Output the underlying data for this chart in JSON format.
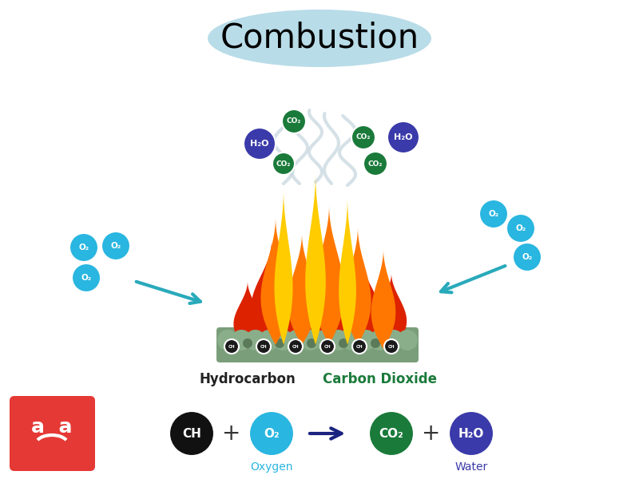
{
  "title": "Combustion",
  "title_bg_color": "#b8dce8",
  "title_fontsize": 30,
  "background_color": "#ffffff",
  "coal_color": "#7a9e7a",
  "o2_color": "#29b6e0",
  "h2o_color": "#3a3aaa",
  "co2_color": "#1a7a3a",
  "ch_color": "#111111",
  "oxygen_label_color": "#29b6e0",
  "water_label_color": "#3a3aaa",
  "carbon_dioxide_label_color": "#1a7a3a",
  "arrow_color": "#29aabb",
  "eq_arrow_color": "#1a237e",
  "hydrocarbon_label": "Hydrocarbon",
  "carbon_dioxide_label": "Carbon Dioxide",
  "logo_color": "#e53935"
}
